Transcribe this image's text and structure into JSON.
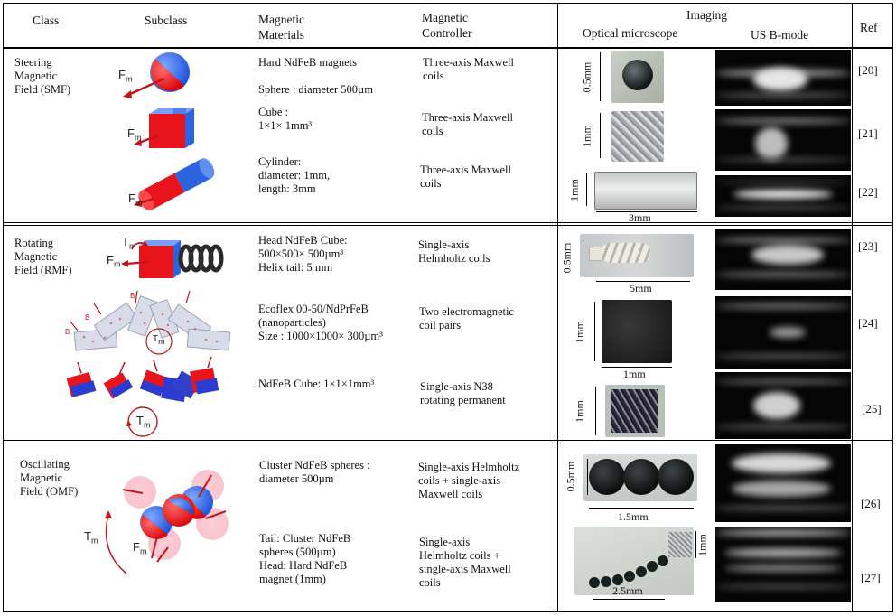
{
  "header": {
    "class": "Class",
    "subclass": "Subclass",
    "materials": "Magnetic\nMaterials",
    "controller": "Magnetic\nController",
    "imaging": "Imaging",
    "optical": "Optical microscope",
    "us": "US B-mode",
    "ref": "Ref"
  },
  "rows": [
    {
      "class": "Steering\nMagnetic\nField (SMF)",
      "items": [
        {
          "materials": "Hard NdFeB magnets\n\nSphere : diameter 500µm",
          "controller": "Three-axis Maxwell\ncoils",
          "ref": "[20]",
          "scale_v": "0.5mm",
          "scale_h": ""
        },
        {
          "materials": "Cube :\n1×1× 1mm³",
          "controller": "Three-axis Maxwell\ncoils",
          "ref": "[21]",
          "scale_v": "1mm",
          "scale_h": ""
        },
        {
          "materials": "Cylinder:\ndiameter: 1mm,\nlength: 3mm",
          "controller": "Three-axis Maxwell\ncoils",
          "ref": "[22]",
          "scale_v": "1mm",
          "scale_h": "3mm"
        }
      ]
    },
    {
      "class": "Rotating\nMagnetic\nField (RMF)",
      "items": [
        {
          "materials": "Head NdFeB Cube:\n500×500× 500µm³\nHelix tail: 5 mm",
          "controller": "Single-axis\nHelmholtz coils",
          "ref": "[23]",
          "scale_v": "0.5mm",
          "scale_h": "5mm"
        },
        {
          "materials": "Ecoflex 00-50/NdPrFeB\n(nanoparticles)\nSize : 1000×1000× 300µm³",
          "controller": "Two electromagnetic\ncoil pairs",
          "ref": "[24]",
          "scale_v": "1mm",
          "scale_h": "1mm"
        },
        {
          "materials": "NdFeB Cube: 1×1×1mm³",
          "controller": "Single-axis N38\nrotating permanent",
          "ref": "[25]",
          "scale_v": "1mm",
          "scale_h": ""
        }
      ]
    },
    {
      "class": "Oscillating\nMagnetic\nField (OMF)",
      "items": [
        {
          "materials": "Cluster NdFeB spheres :\ndiameter 500µm",
          "controller": "Single-axis Helmholtz\ncoils + single-axis\nMaxwell coils",
          "ref": "[26]",
          "scale_v": "0.5mm",
          "scale_h": "1.5mm"
        },
        {
          "materials": "Tail: Cluster NdFeB\nspheres (500µm)\nHead: Hard NdFeB\nmagnet (1mm)",
          "controller": "Single-axis\nHelmholtz coils +\nsingle-axis Maxwell\ncoils",
          "ref": "[27]",
          "scale_v": "1mm",
          "scale_h": "2.5mm"
        }
      ]
    }
  ],
  "symbols": {
    "fm": "F",
    "fm_sub": "m",
    "tm": "T",
    "tm_sub": "m",
    "b": "B"
  },
  "colors": {
    "magnet_red": "#e8141b",
    "magnet_blue": "#2060e0",
    "arrow": "#c0161c"
  }
}
